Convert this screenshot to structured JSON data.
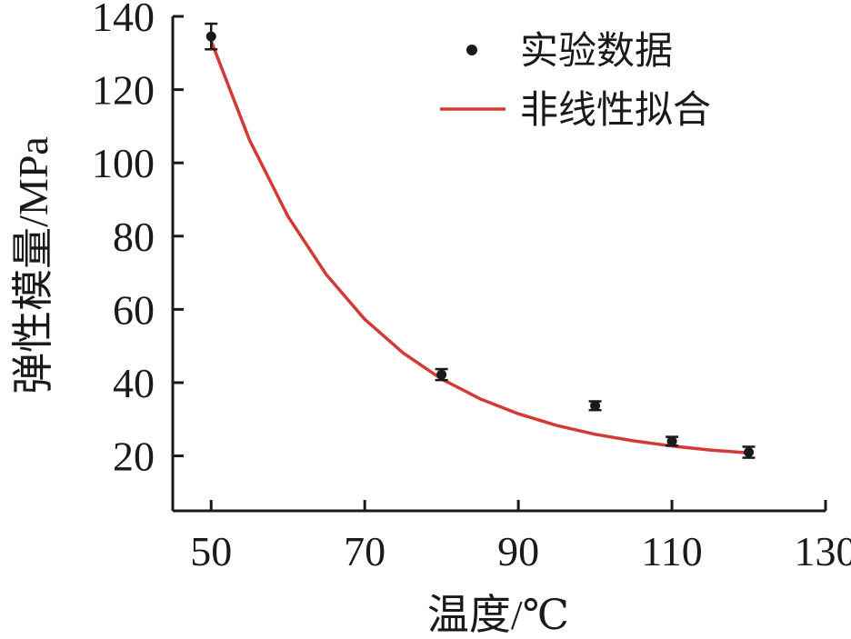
{
  "chart_data": {
    "type": "scatter",
    "xlabel": "温度/℃",
    "ylabel": "弹性模量/MPa",
    "xlim": [
      45,
      130
    ],
    "ylim": [
      5,
      140
    ],
    "xticks": [
      50,
      70,
      90,
      110,
      130
    ],
    "yticks": [
      20,
      40,
      60,
      80,
      100,
      120,
      140
    ],
    "grid": false,
    "legend_position": "top-right",
    "series": [
      {
        "name": "实验数据",
        "kind": "points",
        "color": "#1a1a1a",
        "x": [
          50,
          80,
          100,
          110,
          120
        ],
        "y": [
          134.5,
          42.2,
          33.7,
          24.0,
          21.0
        ],
        "error": [
          3.5,
          1.5,
          1.2,
          1.2,
          1.5
        ]
      },
      {
        "name": "非线性拟合",
        "kind": "line",
        "color": "#d23a36",
        "x": [
          50,
          55,
          60,
          65,
          70,
          75,
          80,
          85,
          90,
          95,
          100,
          105,
          110,
          115,
          120
        ],
        "y": [
          133.3,
          106.2,
          85.4,
          69.5,
          57.3,
          48.1,
          41.0,
          35.6,
          31.5,
          28.3,
          25.9,
          24.1,
          22.7,
          21.6,
          20.8
        ]
      }
    ]
  }
}
